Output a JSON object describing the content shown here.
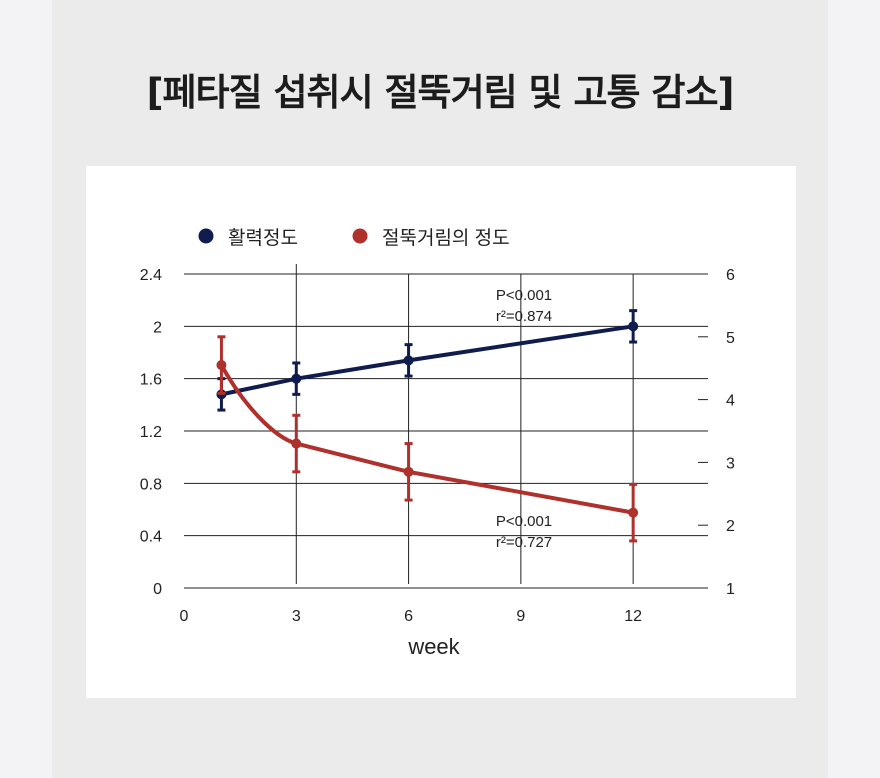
{
  "title": "[페타질 섭취시 절뚝거림 및 고통 감소]",
  "colors": {
    "vitality": "#0f1c4d",
    "limping": "#b0302c",
    "grid": "#222222"
  },
  "chart_data": {
    "type": "line",
    "x_ticks": [
      "0",
      "3",
      "6",
      "9",
      "12"
    ],
    "xlabel": "week",
    "xlim": [
      0,
      14
    ],
    "y_left": {
      "ticks": [
        "0",
        "0.4",
        "0.8",
        "1.2",
        "1.6",
        "2",
        "2.4"
      ],
      "ylim": [
        0,
        2.4
      ]
    },
    "y_right": {
      "ticks": [
        "1",
        "2",
        "3",
        "4",
        "5",
        "6"
      ],
      "ylim": [
        1,
        6
      ]
    },
    "legend": {
      "placement": "top-left"
    },
    "series": [
      {
        "name": "활력정도",
        "axis": "left",
        "x": [
          1,
          3,
          6,
          12
        ],
        "y": [
          1.48,
          1.6,
          1.74,
          2.0
        ],
        "err": [
          0.12,
          0.12,
          0.12,
          0.12
        ],
        "stat_p": "P<0.001",
        "stat_r": "r²=0.874"
      },
      {
        "name": "절뚝거림의 정도",
        "axis": "right",
        "x": [
          1,
          3,
          6,
          12
        ],
        "y": [
          4.55,
          3.3,
          2.85,
          2.2
        ],
        "err": [
          0.45,
          0.45,
          0.45,
          0.45
        ],
        "stat_p": "P<0.001",
        "stat_r": "r²=0.727"
      }
    ]
  }
}
